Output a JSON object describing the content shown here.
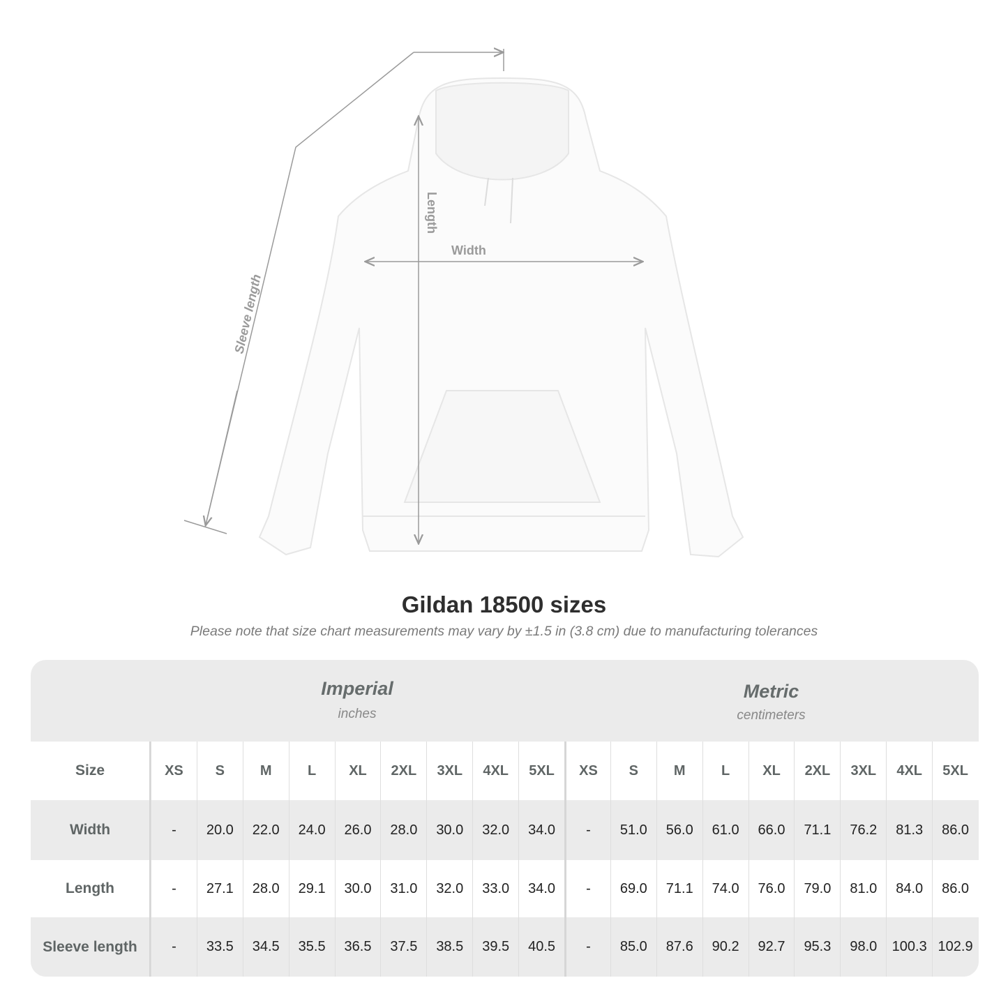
{
  "diagram": {
    "labels": {
      "sleeve": "Sleeve length",
      "length": "Length",
      "width": "Width"
    },
    "line_color": "#9a9a9a"
  },
  "title": "Gildan 18500 sizes",
  "subtitle": "Please note that size chart measurements may vary by ±1.5 in (3.8 cm) due to manufacturing tolerances",
  "table": {
    "imperial": {
      "name": "Imperial",
      "unit": "inches"
    },
    "metric": {
      "name": "Metric",
      "unit": "centimeters"
    },
    "size_label": "Size",
    "sizes": [
      "XS",
      "S",
      "M",
      "L",
      "XL",
      "2XL",
      "3XL",
      "4XL",
      "5XL"
    ],
    "rows": [
      {
        "label": "Width",
        "imperial": [
          "-",
          "20.0",
          "22.0",
          "24.0",
          "26.0",
          "28.0",
          "30.0",
          "32.0",
          "34.0"
        ],
        "metric": [
          "-",
          "51.0",
          "56.0",
          "61.0",
          "66.0",
          "71.1",
          "76.2",
          "81.3",
          "86.0"
        ]
      },
      {
        "label": "Length",
        "imperial": [
          "-",
          "27.1",
          "28.0",
          "29.1",
          "30.0",
          "31.0",
          "32.0",
          "33.0",
          "34.0"
        ],
        "metric": [
          "-",
          "69.0",
          "71.1",
          "74.0",
          "76.0",
          "79.0",
          "81.0",
          "84.0",
          "86.0"
        ]
      },
      {
        "label": "Sleeve length",
        "imperial": [
          "-",
          "33.5",
          "34.5",
          "35.5",
          "36.5",
          "37.5",
          "38.5",
          "39.5",
          "40.5"
        ],
        "metric": [
          "-",
          "85.0",
          "87.6",
          "90.2",
          "92.7",
          "95.3",
          "98.0",
          "100.3",
          "102.9"
        ]
      }
    ]
  }
}
